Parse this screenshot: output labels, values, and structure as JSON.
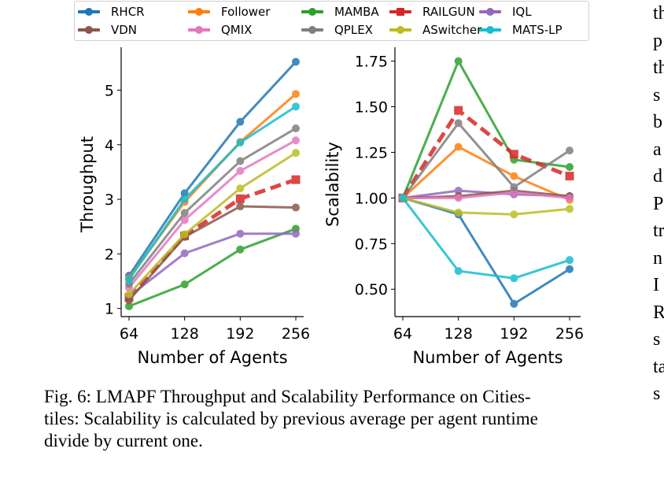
{
  "chart_data": [
    {
      "type": "line",
      "xlabel": "Number of Agents",
      "ylabel": "Throughput",
      "x": [
        64,
        128,
        192,
        256
      ],
      "yticks": [
        1,
        2,
        3,
        4,
        5
      ],
      "ylim": [
        0.85,
        5.7
      ],
      "series": [
        {
          "name": "RHCR",
          "values": [
            1.6,
            3.11,
            4.42,
            5.52
          ]
        },
        {
          "name": "Follower",
          "values": [
            1.55,
            2.95,
            4.05,
            4.93
          ]
        },
        {
          "name": "MAMBA",
          "values": [
            1.04,
            1.44,
            2.08,
            2.46
          ]
        },
        {
          "name": "RAILGUN",
          "values": [
            1.2,
            2.33,
            3.01,
            3.36
          ]
        },
        {
          "name": "IQL",
          "values": [
            1.22,
            2.01,
            2.37,
            2.37
          ]
        },
        {
          "name": "VDN",
          "values": [
            1.15,
            2.31,
            2.87,
            2.85
          ]
        },
        {
          "name": "QMIX",
          "values": [
            1.38,
            2.62,
            3.52,
            4.08
          ]
        },
        {
          "name": "QPLEX",
          "values": [
            1.45,
            2.75,
            3.7,
            4.3
          ]
        },
        {
          "name": "ASwitcher",
          "values": [
            1.26,
            2.36,
            3.2,
            3.85
          ]
        },
        {
          "name": "MATS-LP",
          "values": [
            1.53,
            3.0,
            4.04,
            4.7
          ]
        }
      ]
    },
    {
      "type": "line",
      "xlabel": "Number of Agents",
      "ylabel": "Scalability",
      "x": [
        64,
        128,
        192,
        256
      ],
      "yticks": [
        "0.50",
        "0.75",
        "1.00",
        "1.25",
        "1.50",
        "1.75"
      ],
      "ylim": [
        0.35,
        1.8
      ],
      "series": [
        {
          "name": "RHCR",
          "values": [
            1.0,
            0.91,
            0.42,
            0.61
          ]
        },
        {
          "name": "Follower",
          "values": [
            1.0,
            1.28,
            1.12,
            0.99
          ]
        },
        {
          "name": "MAMBA",
          "values": [
            1.0,
            1.75,
            1.21,
            1.17
          ]
        },
        {
          "name": "RAILGUN",
          "values": [
            1.0,
            1.48,
            1.24,
            1.12
          ]
        },
        {
          "name": "IQL",
          "values": [
            1.0,
            1.04,
            1.02,
            1.01
          ]
        },
        {
          "name": "VDN",
          "values": [
            1.0,
            1.01,
            1.04,
            1.01
          ]
        },
        {
          "name": "QMIX",
          "values": [
            1.0,
            1.0,
            1.03,
            1.0
          ]
        },
        {
          "name": "QPLEX",
          "values": [
            1.0,
            1.41,
            1.06,
            1.26
          ]
        },
        {
          "name": "ASwitcher",
          "values": [
            1.0,
            0.92,
            0.91,
            0.94
          ]
        },
        {
          "name": "MATS-LP",
          "values": [
            1.0,
            0.6,
            0.56,
            0.66
          ]
        }
      ]
    }
  ],
  "legend": [
    {
      "name": "RHCR",
      "color": "#1f77b4",
      "style": "solid"
    },
    {
      "name": "Follower",
      "color": "#ff7f0e",
      "style": "solid"
    },
    {
      "name": "MAMBA",
      "color": "#2ca02c",
      "style": "solid"
    },
    {
      "name": "RAILGUN",
      "color": "#d62728",
      "style": "dashed"
    },
    {
      "name": "IQL",
      "color": "#9467bd",
      "style": "solid"
    },
    {
      "name": "VDN",
      "color": "#8c564b",
      "style": "solid"
    },
    {
      "name": "QMIX",
      "color": "#e377c2",
      "style": "solid"
    },
    {
      "name": "QPLEX",
      "color": "#7f7f7f",
      "style": "solid"
    },
    {
      "name": "ASwitcher",
      "color": "#bcbd22",
      "style": "solid"
    },
    {
      "name": "MATS-LP",
      "color": "#17becf",
      "style": "solid"
    }
  ],
  "caption": {
    "line1": "Fig. 6: LMAPF Throughput and Scalability Performance on Cities-",
    "line2": "tiles: Scalability is calculated by previous average per agent runtime",
    "line3": "divide by current one."
  },
  "side_text": [
    "th",
    "p",
    "th",
    "s",
    "b",
    "a",
    "d",
    "P",
    "tr",
    "n",
    "I",
    "R",
    "s",
    "ta",
    "s"
  ]
}
